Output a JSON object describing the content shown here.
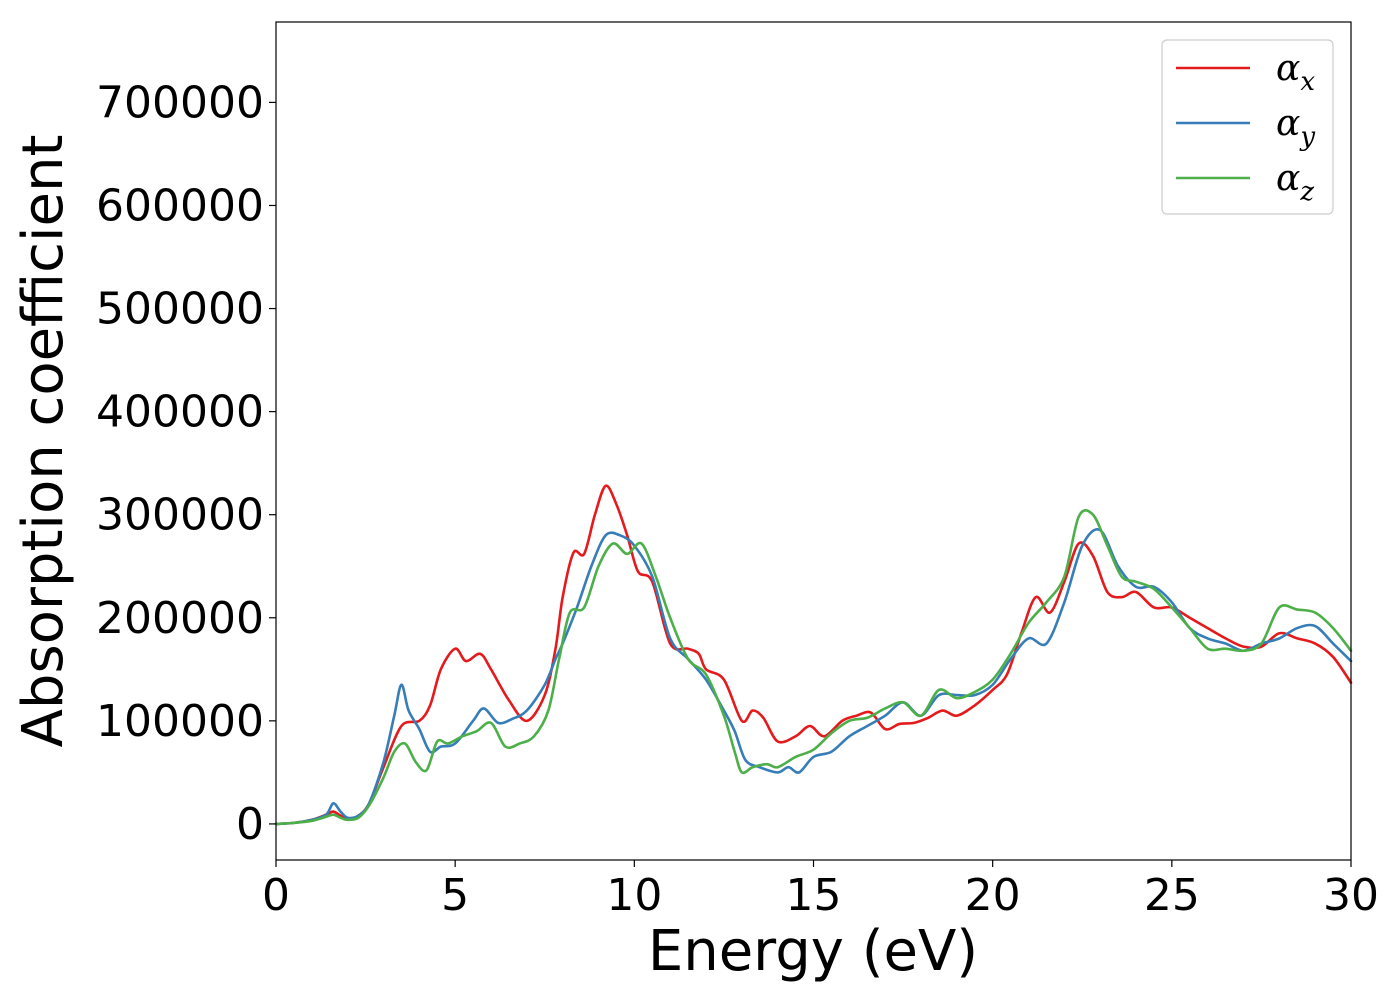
{
  "chart_data": {
    "type": "line",
    "title": "",
    "xlabel": "Energy (eV)",
    "ylabel": "Absorption coefficient",
    "xlim": [
      0,
      30
    ],
    "ylim": [
      -35000,
      778000
    ],
    "xticks": [
      0,
      5,
      10,
      15,
      20,
      25,
      30
    ],
    "yticks": [
      0,
      100000,
      200000,
      300000,
      400000,
      500000,
      600000,
      700000
    ],
    "xtick_labels": [
      "0",
      "5",
      "10",
      "15",
      "20",
      "25",
      "30"
    ],
    "ytick_labels": [
      "0",
      "100000",
      "200000",
      "300000",
      "400000",
      "500000",
      "600000",
      "700000"
    ],
    "grid": false,
    "legend": {
      "position": "top-right"
    },
    "series": [
      {
        "name": "α",
        "subscript": "x",
        "color": "#e41a1c",
        "x": [
          0,
          0.5,
          1.0,
          1.4,
          1.6,
          1.8,
          2.0,
          2.3,
          2.6,
          3.0,
          3.5,
          4.0,
          4.3,
          4.6,
          5.0,
          5.3,
          5.7,
          6.0,
          6.5,
          7.0,
          7.5,
          7.8,
          8.0,
          8.3,
          8.6,
          8.9,
          9.2,
          9.5,
          9.8,
          10.1,
          10.5,
          11.0,
          11.5,
          11.8,
          12.0,
          12.5,
          13.0,
          13.3,
          13.6,
          14.0,
          14.5,
          14.9,
          15.3,
          15.8,
          16.2,
          16.6,
          17.0,
          17.4,
          17.8,
          18.2,
          18.6,
          19.0,
          19.5,
          20.0,
          20.4,
          20.8,
          21.2,
          21.6,
          22.0,
          22.4,
          22.8,
          23.2,
          23.6,
          24.0,
          24.5,
          25.0,
          25.5,
          26.0,
          26.5,
          27.0,
          27.5,
          28.0,
          28.5,
          29.0,
          29.5,
          30.0
        ],
        "y": [
          0,
          1000,
          4000,
          9000,
          12000,
          8000,
          5000,
          8000,
          20000,
          55000,
          95000,
          100000,
          115000,
          150000,
          170000,
          158000,
          165000,
          150000,
          120000,
          100000,
          125000,
          170000,
          220000,
          263000,
          262000,
          300000,
          328000,
          310000,
          280000,
          245000,
          235000,
          175000,
          170000,
          165000,
          150000,
          140000,
          100000,
          110000,
          103000,
          80000,
          85000,
          95000,
          85000,
          100000,
          105000,
          108000,
          92000,
          97000,
          98000,
          103000,
          110000,
          105000,
          115000,
          130000,
          145000,
          185000,
          220000,
          205000,
          235000,
          272000,
          260000,
          225000,
          220000,
          225000,
          210000,
          210000,
          200000,
          190000,
          180000,
          172000,
          172000,
          185000,
          180000,
          175000,
          162000,
          137000
        ]
      },
      {
        "name": "α",
        "subscript": "y",
        "color": "#377eb8",
        "x": [
          0,
          0.5,
          1.0,
          1.4,
          1.6,
          1.8,
          2.0,
          2.3,
          2.6,
          3.0,
          3.3,
          3.5,
          3.7,
          4.0,
          4.3,
          4.6,
          5.0,
          5.5,
          5.8,
          6.2,
          6.6,
          7.0,
          7.5,
          7.8,
          8.0,
          8.4,
          8.8,
          9.2,
          9.6,
          10.0,
          10.5,
          11.0,
          11.5,
          12.0,
          12.5,
          12.8,
          13.1,
          13.5,
          14.0,
          14.3,
          14.6,
          15.0,
          15.5,
          16.0,
          16.5,
          17.0,
          17.5,
          18.0,
          18.5,
          19.0,
          19.5,
          20.0,
          20.5,
          21.0,
          21.5,
          22.0,
          22.5,
          23.0,
          23.5,
          24.0,
          24.5,
          25.0,
          25.5,
          26.0,
          26.5,
          27.0,
          27.5,
          28.0,
          28.5,
          29.0,
          29.5,
          30.0
        ],
        "y": [
          0,
          1000,
          4000,
          9000,
          20000,
          12000,
          6000,
          8000,
          20000,
          60000,
          105000,
          135000,
          110000,
          92000,
          70000,
          75000,
          78000,
          100000,
          112000,
          98000,
          102000,
          110000,
          135000,
          160000,
          175000,
          210000,
          250000,
          280000,
          280000,
          270000,
          240000,
          180000,
          160000,
          140000,
          110000,
          90000,
          62000,
          55000,
          50000,
          55000,
          50000,
          65000,
          70000,
          85000,
          95000,
          105000,
          118000,
          105000,
          125000,
          125000,
          125000,
          135000,
          160000,
          180000,
          175000,
          215000,
          270000,
          285000,
          250000,
          230000,
          230000,
          215000,
          190000,
          180000,
          175000,
          168000,
          175000,
          180000,
          190000,
          192000,
          175000,
          158000
        ]
      },
      {
        "name": "α",
        "subscript": "z",
        "color": "#4daf4a",
        "x": [
          0,
          0.5,
          1.0,
          1.4,
          1.6,
          1.8,
          2.0,
          2.3,
          2.6,
          3.0,
          3.3,
          3.6,
          3.9,
          4.2,
          4.5,
          4.8,
          5.2,
          5.6,
          6.0,
          6.4,
          6.8,
          7.2,
          7.6,
          7.9,
          8.2,
          8.6,
          9.0,
          9.4,
          9.8,
          10.2,
          10.6,
          11.0,
          11.5,
          12.0,
          12.5,
          12.8,
          13.0,
          13.3,
          13.7,
          14.0,
          14.5,
          15.0,
          15.5,
          16.0,
          16.5,
          17.0,
          17.5,
          18.0,
          18.5,
          19.0,
          19.5,
          20.0,
          20.5,
          21.0,
          21.5,
          22.0,
          22.4,
          22.8,
          23.2,
          23.6,
          24.0,
          24.5,
          25.0,
          25.5,
          26.0,
          26.5,
          27.0,
          27.5,
          28.0,
          28.5,
          29.0,
          29.5,
          30.0
        ],
        "y": [
          0,
          1000,
          3000,
          7000,
          9000,
          6000,
          4000,
          6000,
          18000,
          45000,
          70000,
          78000,
          60000,
          52000,
          80000,
          78000,
          85000,
          90000,
          98000,
          75000,
          78000,
          85000,
          110000,
          160000,
          205000,
          210000,
          250000,
          272000,
          262000,
          272000,
          240000,
          200000,
          160000,
          145000,
          105000,
          70000,
          50000,
          55000,
          58000,
          55000,
          65000,
          72000,
          88000,
          100000,
          103000,
          112000,
          118000,
          105000,
          130000,
          122000,
          128000,
          140000,
          165000,
          195000,
          215000,
          240000,
          298000,
          300000,
          270000,
          240000,
          235000,
          228000,
          210000,
          190000,
          170000,
          170000,
          168000,
          175000,
          210000,
          208000,
          205000,
          190000,
          168000
        ]
      }
    ]
  }
}
